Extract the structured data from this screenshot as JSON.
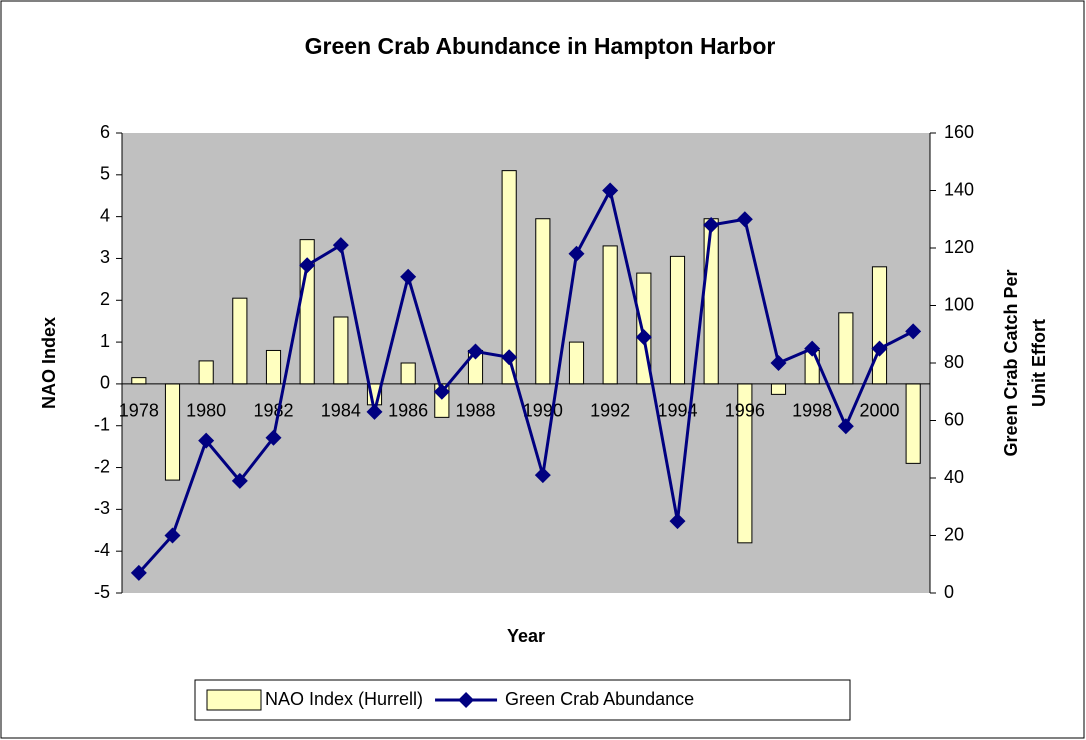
{
  "chart_data": {
    "type": "combo",
    "title": "Green Crab Abundance in Hampton Harbor",
    "xlabel": "Year",
    "ylabel": "NAO Index",
    "y2label": [
      "Green Crab Catch Per",
      "Unit Effort"
    ],
    "categories": [
      "1978",
      null,
      "1980",
      null,
      "1982",
      null,
      "1984",
      null,
      "1986",
      null,
      "1988",
      null,
      "1990",
      null,
      "1992",
      null,
      "1994",
      null,
      "1996",
      null,
      "1998",
      null,
      "2000",
      null
    ],
    "series": [
      {
        "name": "NAO Index (Hurrell)",
        "type": "bar",
        "color": "#ffffc0",
        "values": [
          0.15,
          -2.3,
          0.55,
          2.05,
          0.8,
          3.45,
          1.6,
          -0.5,
          0.5,
          -0.8,
          0.8,
          5.1,
          3.95,
          1.0,
          3.3,
          2.65,
          3.05,
          3.95,
          -3.8,
          -0.25,
          0.8,
          1.7,
          2.8,
          -1.9
        ]
      },
      {
        "name": "Green Crab Abundance",
        "type": "line",
        "color": "#000080",
        "axis": "y2",
        "values": [
          7,
          20,
          53,
          39,
          54,
          114,
          121,
          63,
          110,
          70,
          84,
          82,
          41,
          118,
          140,
          89,
          25,
          128,
          130,
          80,
          85,
          58,
          85,
          91
        ]
      }
    ],
    "ylim": [
      -5,
      6
    ],
    "yticks": [
      -5,
      -4,
      -3,
      -2,
      -1,
      0,
      1,
      2,
      3,
      4,
      5,
      6
    ],
    "y2lim": [
      0,
      160
    ],
    "y2ticks": [
      0,
      20,
      40,
      60,
      80,
      100,
      120,
      140,
      160
    ],
    "grid": false,
    "legend": "bottom",
    "plot_background": "#c0c0c0"
  }
}
